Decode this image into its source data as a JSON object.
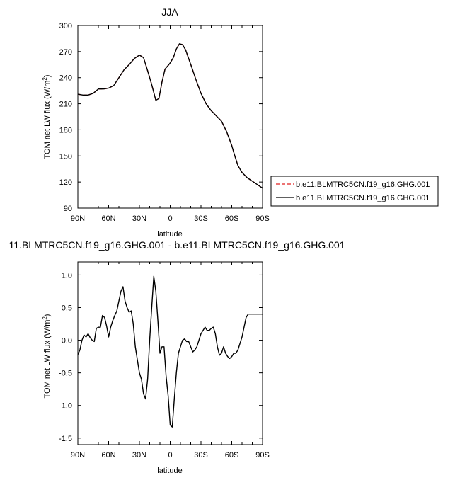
{
  "chart_data": [
    {
      "type": "line",
      "title": "JJA",
      "xlabel": "latitude",
      "ylabel": "TOM net LW flux (W/m",
      "ylabel_sup": "2",
      "ylabel_end": ")",
      "xlim": [
        90,
        -90
      ],
      "ylim": [
        90,
        300
      ],
      "xticks": [
        90,
        60,
        30,
        0,
        -30,
        -60,
        -90
      ],
      "xtick_labels": [
        "90N",
        "60N",
        "30N",
        "0",
        "30S",
        "60S",
        "90S"
      ],
      "yticks": [
        90,
        120,
        150,
        180,
        210,
        240,
        270,
        300
      ],
      "ytick_labels": [
        "90",
        "120",
        "150",
        "180",
        "210",
        "240",
        "270",
        "300"
      ],
      "legend": "outside-right",
      "grid": false,
      "x": [
        90,
        85,
        80,
        75,
        70,
        65,
        60,
        55,
        50,
        45,
        40,
        35,
        30,
        26,
        22,
        18,
        14,
        11,
        8,
        5,
        2,
        0,
        -3,
        -6,
        -9,
        -12,
        -15,
        -18,
        -21,
        -25,
        -30,
        -35,
        -40,
        -45,
        -50,
        -55,
        -60,
        -63,
        -66,
        -70,
        -75,
        -80,
        -85,
        -90
      ],
      "series": [
        {
          "name": "b.e11.BLMTRC5CN.f19_g16.GHG.001",
          "color": "#e02020",
          "style": "dashed",
          "values": [
            221,
            220,
            220,
            222,
            227,
            227,
            228,
            231,
            240,
            249,
            255,
            262,
            266,
            263,
            248,
            232,
            214,
            216,
            235,
            250,
            254,
            257,
            263,
            273,
            279,
            278,
            272,
            262,
            252,
            238,
            222,
            210,
            202,
            196,
            190,
            178,
            162,
            150,
            139,
            131,
            125,
            121,
            117,
            113
          ]
        },
        {
          "name": "b.e11.BLMTRC5CN.f19_g16.GHG.001",
          "color": "#000000",
          "style": "solid",
          "values": [
            221,
            220,
            220,
            222,
            227,
            227,
            228,
            231,
            240,
            249,
            255,
            262,
            266,
            263,
            248,
            232,
            214,
            216,
            235,
            250,
            254,
            257,
            263,
            273,
            279,
            278,
            272,
            262,
            252,
            238,
            222,
            210,
            202,
            196,
            190,
            178,
            162,
            150,
            139,
            131,
            125,
            121,
            117,
            113
          ]
        }
      ]
    },
    {
      "type": "line",
      "title": "11.BLMTRC5CN.f19_g16.GHG.001 - b.e11.BLMTRC5CN.f19_g16.GHG.001",
      "xlabel": "latitude",
      "ylabel": "TOM net LW flux (W/m",
      "ylabel_sup": "2",
      "ylabel_end": ")",
      "xlim": [
        90,
        -90
      ],
      "ylim": [
        -1.6,
        1.2
      ],
      "xticks": [
        90,
        60,
        30,
        0,
        -30,
        -60,
        -90
      ],
      "xtick_labels": [
        "90N",
        "60N",
        "30N",
        "0",
        "30S",
        "60S",
        "90S"
      ],
      "yticks": [
        1.0,
        0.5,
        0.0,
        -0.5,
        -1.0,
        -1.5
      ],
      "ytick_labels": [
        "1.0",
        "0.5",
        "0.0",
        "-0.5",
        "-1.0",
        "-1.5"
      ],
      "grid": false,
      "x": [
        90,
        88,
        86,
        84,
        82,
        80,
        78,
        76,
        74,
        72,
        70,
        68,
        66,
        64,
        62,
        60,
        58,
        56,
        54,
        52,
        50,
        48,
        46,
        44,
        42,
        40,
        38,
        36,
        34,
        32,
        30,
        28,
        26,
        24,
        22,
        20,
        18,
        16,
        14,
        12,
        10,
        8,
        6,
        4,
        2,
        0,
        -2,
        -4,
        -6,
        -8,
        -10,
        -12,
        -14,
        -16,
        -18,
        -20,
        -22,
        -24,
        -26,
        -28,
        -30,
        -32,
        -34,
        -36,
        -38,
        -40,
        -42,
        -44,
        -46,
        -48,
        -50,
        -52,
        -54,
        -56,
        -58,
        -60,
        -62,
        -64,
        -66,
        -68,
        -70,
        -72,
        -74,
        -76,
        -78,
        -80,
        -82,
        -84,
        -86,
        -88,
        -90
      ],
      "series": [
        {
          "name": "",
          "color": "#000000",
          "style": "solid",
          "values": [
            -0.22,
            -0.15,
            0.0,
            0.08,
            0.05,
            0.1,
            0.04,
            0.0,
            -0.02,
            0.18,
            0.2,
            0.2,
            0.38,
            0.35,
            0.22,
            0.05,
            0.2,
            0.3,
            0.38,
            0.45,
            0.6,
            0.75,
            0.82,
            0.6,
            0.5,
            0.43,
            0.45,
            0.25,
            -0.1,
            -0.3,
            -0.5,
            -0.6,
            -0.82,
            -0.9,
            -0.6,
            0.0,
            0.5,
            0.98,
            0.75,
            0.3,
            -0.2,
            -0.1,
            -0.1,
            -0.55,
            -0.85,
            -1.3,
            -1.33,
            -0.9,
            -0.5,
            -0.2,
            -0.1,
            0.0,
            0.02,
            -0.02,
            -0.02,
            -0.1,
            -0.18,
            -0.15,
            -0.1,
            0.0,
            0.1,
            0.15,
            0.2,
            0.15,
            0.15,
            0.18,
            0.2,
            0.1,
            -0.1,
            -0.23,
            -0.2,
            -0.1,
            -0.2,
            -0.25,
            -0.28,
            -0.25,
            -0.2,
            -0.2,
            -0.15,
            -0.05,
            0.05,
            0.2,
            0.35,
            0.4,
            0.4,
            0.4,
            0.4,
            0.4,
            0.4,
            0.4,
            0.4
          ]
        }
      ]
    }
  ]
}
